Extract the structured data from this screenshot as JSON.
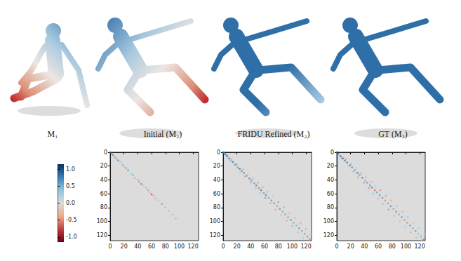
{
  "top_row": {
    "labels": [
      "M₁",
      "Initial (M₂)",
      "FRIDU Refined (M₂)",
      "GT (M₂)"
    ]
  },
  "colorbar": {
    "range": [
      -1.15,
      1.15
    ],
    "ticks": [
      {
        "value": 1,
        "label": "1.0"
      },
      0.5,
      {
        "value": 0,
        "label": "0.0"
      },
      -0.5,
      {
        "value": -1,
        "label": "-1.0"
      }
    ]
  },
  "chart_data": [
    {
      "type": "heatmap",
      "xlim": [
        0,
        128
      ],
      "ylim": [
        0,
        128
      ],
      "xticks": [
        0,
        20,
        40,
        60,
        80,
        100,
        120
      ],
      "yticks": [
        0,
        20,
        40,
        60,
        80,
        100,
        120
      ],
      "cells": [
        [
          0,
          0,
          0.8
        ],
        [
          2,
          2,
          0.6
        ],
        [
          4,
          4,
          0.7
        ],
        [
          6,
          7,
          -0.4
        ],
        [
          8,
          8,
          0.5
        ],
        [
          10,
          11,
          0.4
        ],
        [
          12,
          12,
          0.6
        ],
        [
          15,
          14,
          -0.3
        ],
        [
          18,
          18,
          0.5
        ],
        [
          20,
          21,
          0.4
        ],
        [
          23,
          23,
          -0.5
        ],
        [
          26,
          26,
          0.6
        ],
        [
          30,
          31,
          0.3
        ],
        [
          33,
          33,
          0.5
        ],
        [
          36,
          37,
          -0.4
        ],
        [
          40,
          40,
          0.4
        ],
        [
          42,
          43,
          -0.5
        ],
        [
          45,
          46,
          -0.6
        ],
        [
          48,
          48,
          0.3
        ],
        [
          52,
          51,
          -0.4
        ],
        [
          55,
          55,
          0.5
        ],
        [
          58,
          58,
          -0.3
        ],
        [
          60,
          61,
          -0.7
        ],
        [
          63,
          63,
          0.4
        ],
        [
          66,
          67,
          -0.4
        ],
        [
          70,
          70,
          0.3
        ],
        [
          75,
          75,
          -0.5
        ],
        [
          80,
          80,
          0.4
        ],
        [
          85,
          85,
          -0.3
        ],
        [
          90,
          90,
          0.3
        ],
        [
          95,
          96,
          -0.4
        ]
      ]
    },
    {
      "type": "heatmap",
      "xlim": [
        0,
        128
      ],
      "ylim": [
        0,
        128
      ],
      "xticks": [
        0,
        20,
        40,
        60,
        80,
        100,
        120
      ],
      "yticks": [
        0,
        20,
        40,
        60,
        80,
        100,
        120
      ],
      "cells": [
        [
          0,
          0,
          0.9
        ],
        [
          1,
          1,
          0.8
        ],
        [
          3,
          3,
          0.9
        ],
        [
          5,
          4,
          0.6
        ],
        [
          6,
          6,
          0.8
        ],
        [
          8,
          9,
          -0.4
        ],
        [
          9,
          9,
          0.7
        ],
        [
          11,
          12,
          0.5
        ],
        [
          12,
          10,
          -0.3
        ],
        [
          14,
          14,
          0.8
        ],
        [
          16,
          18,
          -0.4
        ],
        [
          18,
          18,
          0.7
        ],
        [
          20,
          17,
          0.3
        ],
        [
          21,
          22,
          0.6
        ],
        [
          24,
          24,
          0.8
        ],
        [
          25,
          29,
          -0.3
        ],
        [
          27,
          27,
          0.6
        ],
        [
          29,
          25,
          0.4
        ],
        [
          30,
          30,
          0.7
        ],
        [
          32,
          35,
          -0.5
        ],
        [
          34,
          34,
          0.6
        ],
        [
          36,
          31,
          -0.3
        ],
        [
          38,
          38,
          0.7
        ],
        [
          40,
          44,
          0.4
        ],
        [
          41,
          41,
          -0.6
        ],
        [
          43,
          38,
          0.3
        ],
        [
          45,
          45,
          0.6
        ],
        [
          47,
          52,
          -0.4
        ],
        [
          48,
          48,
          0.7
        ],
        [
          50,
          44,
          -0.5
        ],
        [
          52,
          52,
          0.6
        ],
        [
          54,
          59,
          0.3
        ],
        [
          55,
          55,
          -0.7
        ],
        [
          57,
          50,
          0.4
        ],
        [
          59,
          59,
          0.6
        ],
        [
          61,
          66,
          -0.5
        ],
        [
          62,
          62,
          0.7
        ],
        [
          64,
          57,
          -0.4
        ],
        [
          66,
          66,
          0.5
        ],
        [
          68,
          74,
          0.4
        ],
        [
          70,
          70,
          -0.6
        ],
        [
          72,
          64,
          0.3
        ],
        [
          74,
          74,
          0.6
        ],
        [
          76,
          83,
          -0.4
        ],
        [
          78,
          78,
          0.5
        ],
        [
          80,
          72,
          -0.5
        ],
        [
          82,
          82,
          0.6
        ],
        [
          84,
          91,
          0.3
        ],
        [
          86,
          86,
          -0.5
        ],
        [
          88,
          80,
          0.4
        ],
        [
          90,
          90,
          0.6
        ],
        [
          92,
          99,
          -0.4
        ],
        [
          94,
          94,
          0.5
        ],
        [
          96,
          88,
          -0.3
        ],
        [
          98,
          98,
          0.6
        ],
        [
          100,
          107,
          0.4
        ],
        [
          102,
          102,
          -0.5
        ],
        [
          104,
          95,
          0.3
        ],
        [
          106,
          106,
          0.5
        ],
        [
          108,
          116,
          -0.4
        ],
        [
          110,
          110,
          0.6
        ],
        [
          112,
          103,
          -0.4
        ],
        [
          114,
          114,
          0.5
        ],
        [
          116,
          124,
          0.3
        ],
        [
          118,
          118,
          -0.5
        ],
        [
          120,
          111,
          0.4
        ],
        [
          122,
          122,
          0.6
        ],
        [
          124,
          126,
          -0.3
        ],
        [
          126,
          126,
          0.5
        ],
        [
          127,
          119,
          0.3
        ]
      ]
    },
    {
      "type": "heatmap",
      "xlim": [
        0,
        128
      ],
      "ylim": [
        0,
        128
      ],
      "xticks": [
        0,
        20,
        40,
        60,
        80,
        100,
        120
      ],
      "yticks": [
        0,
        20,
        40,
        60,
        80,
        100,
        120
      ],
      "cells": [
        [
          0,
          0,
          1
        ],
        [
          1,
          2,
          0.7
        ],
        [
          2,
          2,
          0.9
        ],
        [
          4,
          5,
          0.5
        ],
        [
          6,
          6,
          0.8
        ],
        [
          7,
          9,
          -0.5
        ],
        [
          9,
          9,
          0.8
        ],
        [
          11,
          13,
          0.4
        ],
        [
          12,
          12,
          0.7
        ],
        [
          13,
          10,
          -0.4
        ],
        [
          15,
          15,
          0.8
        ],
        [
          17,
          20,
          -0.3
        ],
        [
          19,
          19,
          0.7
        ],
        [
          21,
          17,
          0.4
        ],
        [
          22,
          22,
          0.7
        ],
        [
          24,
          28,
          -0.4
        ],
        [
          26,
          26,
          0.6
        ],
        [
          28,
          23,
          0.3
        ],
        [
          30,
          30,
          0.8
        ],
        [
          31,
          36,
          -0.4
        ],
        [
          33,
          33,
          0.6
        ],
        [
          35,
          30,
          -0.4
        ],
        [
          37,
          37,
          0.7
        ],
        [
          39,
          44,
          0.5
        ],
        [
          41,
          41,
          -0.5
        ],
        [
          42,
          36,
          0.3
        ],
        [
          44,
          44,
          0.6
        ],
        [
          46,
          52,
          -0.5
        ],
        [
          48,
          48,
          0.6
        ],
        [
          50,
          43,
          -0.4
        ],
        [
          51,
          51,
          0.7
        ],
        [
          53,
          60,
          0.4
        ],
        [
          55,
          55,
          -0.6
        ],
        [
          56,
          49,
          0.3
        ],
        [
          58,
          58,
          0.6
        ],
        [
          60,
          67,
          -0.4
        ],
        [
          62,
          62,
          0.6
        ],
        [
          63,
          55,
          -0.5
        ],
        [
          66,
          66,
          0.6
        ],
        [
          67,
          75,
          0.3
        ],
        [
          70,
          70,
          -0.5
        ],
        [
          71,
          63,
          0.4
        ],
        [
          74,
          74,
          0.5
        ],
        [
          75,
          83,
          -0.5
        ],
        [
          78,
          78,
          0.6
        ],
        [
          79,
          70,
          -0.4
        ],
        [
          82,
          82,
          0.5
        ],
        [
          83,
          92,
          0.4
        ],
        [
          86,
          86,
          -0.6
        ],
        [
          87,
          78,
          0.3
        ],
        [
          90,
          90,
          0.5
        ],
        [
          91,
          100,
          -0.3
        ],
        [
          94,
          94,
          0.6
        ],
        [
          95,
          86,
          -0.4
        ],
        [
          98,
          98,
          0.5
        ],
        [
          99,
          108,
          0.3
        ],
        [
          102,
          102,
          -0.5
        ],
        [
          103,
          94,
          0.4
        ],
        [
          106,
          106,
          0.6
        ],
        [
          107,
          116,
          -0.4
        ],
        [
          110,
          110,
          0.5
        ],
        [
          111,
          102,
          -0.3
        ],
        [
          114,
          114,
          0.6
        ],
        [
          115,
          124,
          0.4
        ],
        [
          118,
          118,
          -0.4
        ],
        [
          119,
          110,
          0.3
        ],
        [
          122,
          122,
          0.5
        ],
        [
          123,
          127,
          -0.4
        ],
        [
          126,
          126,
          0.6
        ],
        [
          127,
          118,
          0.3
        ]
      ]
    }
  ]
}
